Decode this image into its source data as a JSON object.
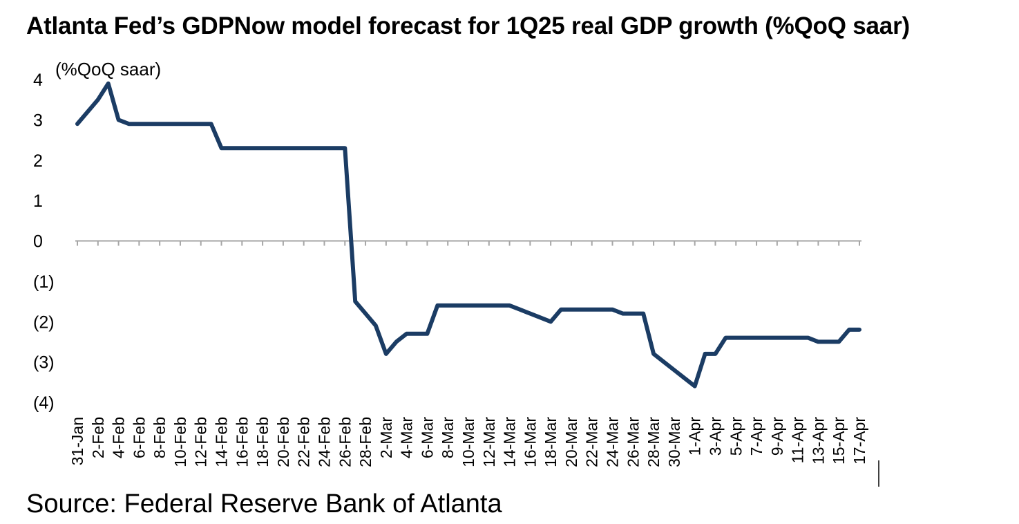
{
  "title": "Atlanta Fed’s GDPNow model forecast for 1Q25 real GDP growth (%QoQ saar)",
  "source": "Source: Federal Reserve Bank of Atlanta",
  "colors": {
    "line": "#1b3c64",
    "axis": "#a6a6a6",
    "text": "#000000"
  },
  "chart_data": {
    "type": "line",
    "title": "Atlanta Fed’s GDPNow model forecast for 1Q25 real GDP growth (%QoQ saar)",
    "ylabel": "(%QoQ saar)",
    "xlabel": "",
    "ylim": [
      -4,
      4
    ],
    "y_ticks": [
      4,
      3,
      2,
      1,
      0,
      -1,
      -2,
      -3,
      -4
    ],
    "y_tick_labels": [
      "4",
      "3",
      "2",
      "1",
      "0",
      "(1)",
      "(2)",
      "(3)",
      "(4)"
    ],
    "grid": false,
    "legend": "none",
    "x": [
      "31-Jan",
      "1-Feb",
      "2-Feb",
      "3-Feb",
      "4-Feb",
      "5-Feb",
      "6-Feb",
      "7-Feb",
      "8-Feb",
      "9-Feb",
      "10-Feb",
      "11-Feb",
      "12-Feb",
      "13-Feb",
      "14-Feb",
      "15-Feb",
      "16-Feb",
      "17-Feb",
      "18-Feb",
      "19-Feb",
      "20-Feb",
      "21-Feb",
      "22-Feb",
      "23-Feb",
      "24-Feb",
      "25-Feb",
      "26-Feb",
      "27-Feb",
      "28-Feb",
      "1-Mar",
      "2-Mar",
      "3-Mar",
      "4-Mar",
      "5-Mar",
      "6-Mar",
      "7-Mar",
      "8-Mar",
      "9-Mar",
      "10-Mar",
      "11-Mar",
      "12-Mar",
      "13-Mar",
      "14-Mar",
      "15-Mar",
      "16-Mar",
      "17-Mar",
      "18-Mar",
      "19-Mar",
      "20-Mar",
      "21-Mar",
      "22-Mar",
      "23-Mar",
      "24-Mar",
      "25-Mar",
      "26-Mar",
      "27-Mar",
      "28-Mar",
      "29-Mar",
      "30-Mar",
      "31-Mar",
      "1-Apr",
      "2-Apr",
      "3-Apr",
      "4-Apr",
      "5-Apr",
      "6-Apr",
      "7-Apr",
      "8-Apr",
      "9-Apr",
      "10-Apr",
      "11-Apr",
      "12-Apr",
      "13-Apr",
      "14-Apr",
      "15-Apr",
      "16-Apr",
      "17-Apr"
    ],
    "x_tick_labels": [
      "31-Jan",
      "2-Feb",
      "4-Feb",
      "6-Feb",
      "8-Feb",
      "10-Feb",
      "12-Feb",
      "14-Feb",
      "16-Feb",
      "18-Feb",
      "20-Feb",
      "22-Feb",
      "24-Feb",
      "26-Feb",
      "28-Feb",
      "2-Mar",
      "4-Mar",
      "6-Mar",
      "8-Mar",
      "10-Mar",
      "12-Mar",
      "14-Mar",
      "16-Mar",
      "18-Mar",
      "20-Mar",
      "22-Mar",
      "24-Mar",
      "26-Mar",
      "28-Mar",
      "30-Mar",
      "1-Apr",
      "3-Apr",
      "5-Apr",
      "7-Apr",
      "9-Apr",
      "11-Apr",
      "13-Apr",
      "15-Apr",
      "17-Apr"
    ],
    "series": [
      {
        "values": [
          2.9,
          3.2,
          3.5,
          3.9,
          3.0,
          2.9,
          2.9,
          2.9,
          2.9,
          2.9,
          2.9,
          2.9,
          2.9,
          2.9,
          2.3,
          2.3,
          2.3,
          2.3,
          2.3,
          2.3,
          2.3,
          2.3,
          2.3,
          2.3,
          2.3,
          2.3,
          2.3,
          -1.5,
          -1.8,
          -2.1,
          -2.8,
          -2.5,
          -2.3,
          -2.3,
          -2.3,
          -1.6,
          -1.6,
          -1.6,
          -1.6,
          -1.6,
          -1.6,
          -1.6,
          -1.6,
          -1.7,
          -1.8,
          -1.9,
          -2.0,
          -1.7,
          -1.7,
          -1.7,
          -1.7,
          -1.7,
          -1.7,
          -1.8,
          -1.8,
          -1.8,
          -2.8,
          -3.0,
          -3.2,
          -3.4,
          -3.6,
          -2.8,
          -2.8,
          -2.4,
          -2.4,
          -2.4,
          -2.4,
          -2.4,
          -2.4,
          -2.4,
          -2.4,
          -2.4,
          -2.5,
          -2.5,
          -2.5,
          -2.2,
          -2.2
        ]
      }
    ]
  }
}
